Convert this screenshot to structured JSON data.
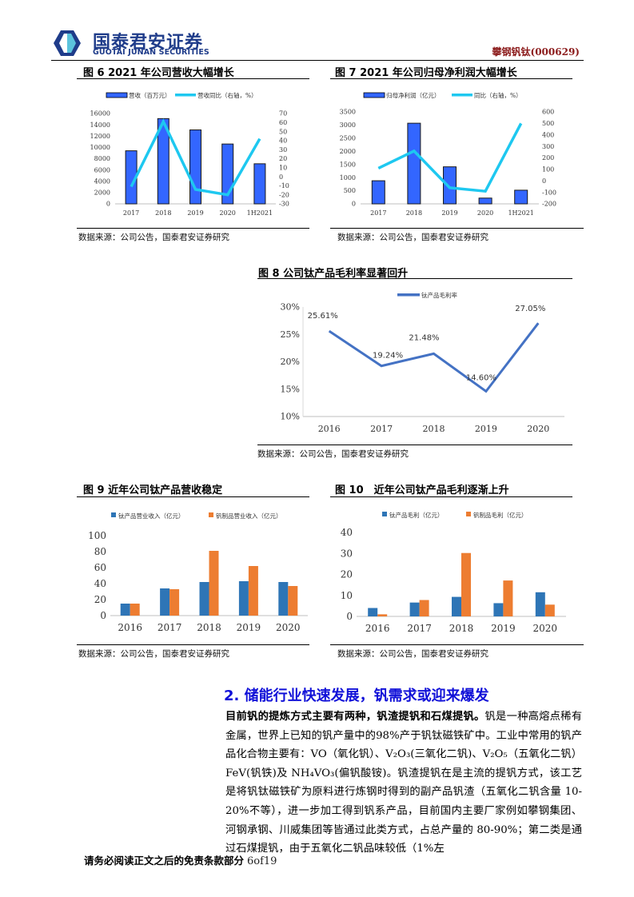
{
  "header": {
    "logo_cn": "国泰君安证券",
    "logo_en": "GUOTAI JUNAN SECURITIES",
    "stock_label": "攀钢钒钛(000629)",
    "colors": {
      "logo_dark": "#1f3c8a",
      "logo_light": "#5bc3dd",
      "stock": "#8b1a1a"
    }
  },
  "figures": {
    "fig6": {
      "title": "图 6 2021 年公司营收大幅增长",
      "source": "数据来源：公司公告，国泰君安证券研究"
    },
    "fig7": {
      "title": "图 7 2021 年公司归母净利润大幅增长",
      "source": "数据来源：公司公告，国泰君安证券研究"
    },
    "fig8": {
      "title": "图 8 公司钛产品毛利率显著回升",
      "source": "数据来源：公司公告，国泰君安证券研究"
    },
    "fig9": {
      "title": "图 9 近年公司钛产品营收稳定",
      "source": "数据来源：公司公告，国泰君安证券研究"
    },
    "fig10": {
      "title": "图 10　近年公司钛产品毛利逐渐上升",
      "source": "数据来源：公司公告，国泰君安证券研究"
    }
  },
  "chart_data": [
    {
      "id": "fig6",
      "type": "bar+line",
      "title": "图 6 2021 年公司营收大幅增长",
      "categories": [
        "2017",
        "2018",
        "2019",
        "2020",
        "1H2021"
      ],
      "series": [
        {
          "name": "营收（百万元）",
          "type": "bar",
          "axis": "left",
          "color": "#3366ff",
          "values": [
            9400,
            15100,
            13100,
            10600,
            7100
          ]
        },
        {
          "name": "营收同比（右轴，%）",
          "type": "line",
          "axis": "right",
          "color": "#1ec8f0",
          "values": [
            -11,
            61,
            -14,
            -20,
            42
          ]
        }
      ],
      "yleft": {
        "min": 0,
        "max": 16000,
        "ticks": [
          0,
          2000,
          4000,
          6000,
          8000,
          10000,
          12000,
          14000,
          16000
        ]
      },
      "yright": {
        "min": -30,
        "max": 70,
        "ticks": [
          -30,
          -20,
          -10,
          0,
          10,
          20,
          30,
          40,
          50,
          60,
          70
        ]
      },
      "legend_position": "top",
      "grid": false
    },
    {
      "id": "fig7",
      "type": "bar+line",
      "title": "图 7 2021 年公司归母净利润大幅增长",
      "categories": [
        "2017",
        "2018",
        "2019",
        "2020",
        "1H2021"
      ],
      "series": [
        {
          "name": "归母净利润（亿元）",
          "type": "bar",
          "axis": "left",
          "color": "#3366ff",
          "values": [
            880,
            3070,
            1410,
            220,
            520
          ]
        },
        {
          "name": "同比（右轴，%）",
          "type": "line",
          "axis": "right",
          "color": "#1ec8f0",
          "values": [
            110,
            260,
            -60,
            -90,
            500
          ]
        }
      ],
      "yleft": {
        "min": 0,
        "max": 3500,
        "ticks": [
          0,
          500,
          1000,
          1500,
          2000,
          2500,
          3000,
          3500
        ]
      },
      "yright": {
        "min": -200,
        "max": 600,
        "ticks": [
          -200,
          -100,
          0,
          100,
          200,
          300,
          400,
          500,
          600
        ]
      },
      "legend_position": "top",
      "grid": false
    },
    {
      "id": "fig8",
      "type": "line",
      "title": "图 8 公司钛产品毛利率显著回升",
      "categories": [
        "2016",
        "2017",
        "2018",
        "2019",
        "2020"
      ],
      "series": [
        {
          "name": "钛产品毛利率",
          "color": "#4472c4",
          "values": [
            25.61,
            19.24,
            21.48,
            14.6,
            27.05
          ],
          "labels": [
            "25.61%",
            "19.24%",
            "21.48%",
            "14.60%",
            "27.05%"
          ]
        }
      ],
      "y": {
        "min": 10,
        "max": 30,
        "ticks": [
          10,
          15,
          20,
          25,
          30
        ],
        "format": "%"
      },
      "legend_position": "top",
      "grid": false
    },
    {
      "id": "fig9",
      "type": "bar",
      "title": "图 9 近年公司钛产品营收稳定",
      "categories": [
        "2016",
        "2017",
        "2018",
        "2019",
        "2020"
      ],
      "series": [
        {
          "name": "钛产品营业收入（亿元）",
          "color": "#2e75b6",
          "values": [
            15,
            34,
            42,
            43,
            42
          ]
        },
        {
          "name": "钒制品营业收入（亿元）",
          "color": "#ed7d31",
          "values": [
            15,
            33,
            81,
            62,
            37
          ]
        }
      ],
      "y": {
        "min": 0,
        "max": 100,
        "ticks": [
          0,
          20,
          40,
          60,
          80,
          100
        ]
      },
      "legend_position": "top",
      "grid": false
    },
    {
      "id": "fig10",
      "type": "bar",
      "title": "图 10 近年公司钛产品毛利逐渐上升",
      "categories": [
        "2016",
        "2017",
        "2018",
        "2019",
        "2020"
      ],
      "series": [
        {
          "name": "钛产品毛利（亿元）",
          "color": "#2e75b6",
          "values": [
            4.0,
            6.6,
            9.3,
            6.3,
            11.5
          ]
        },
        {
          "name": "钒制品毛利（亿元）",
          "color": "#ed7d31",
          "values": [
            1.0,
            7.8,
            30.2,
            17.1,
            5.6
          ]
        }
      ],
      "y": {
        "min": 0,
        "max": 40,
        "ticks": [
          0,
          10,
          20,
          30,
          40
        ]
      },
      "legend_position": "top",
      "grid": false
    }
  ],
  "section": {
    "title": "2.  储能行业快速发展，钒需求或迎来爆发",
    "color": "#1010d8",
    "lead": "目前钒的提炼方式主要有两种，钒渣提钒和石煤提钒。",
    "body": "钒是一种高熔点稀有金属，世界上已知的钒产量中的98%产于钒钛磁铁矿中。工业中常用的钒产品化合物主要有：VO（氧化钒）、V₂O₃(三氧化二钒)、V₂O₅（五氧化二钒）FeV(钒铁)及 NH₄VO₃(偏钒酸铵)。钒渣提钒在是主流的提钒方式，该工艺是将钒钛磁铁矿为原料进行炼钢时得到的副产品钒渣（五氧化二钒含量 10-20%不等），进一步加工得到钒系产品，目前国内主要厂家例如攀钢集团、河钢承钢、川威集团等皆通过此类方式，占总产量的 80-90%；第二类是通过石煤提钒，由于五氧化二钒品味较低（1%左"
  },
  "footer": {
    "disclaimer": "请务必阅读正文之后的免责条款部分",
    "page": "6of19"
  }
}
